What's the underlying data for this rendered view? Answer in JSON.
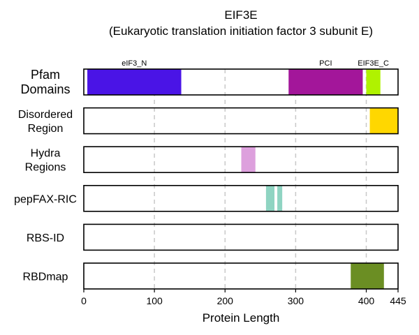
{
  "title": "EIF3E",
  "subtitle": "(Eukaryotic translation initiation factor 3 subunit E)",
  "chart_data": {
    "type": "bar",
    "orientation": "horizontal-tracks",
    "xlabel": "Protein Length",
    "xlim": [
      0,
      445
    ],
    "xticks": [
      0,
      100,
      200,
      300,
      400,
      445
    ],
    "grid_x": [
      100,
      200,
      300,
      400
    ],
    "tracks": [
      {
        "label_lines": [
          "Pfam",
          "Domains"
        ],
        "large": true,
        "segments": [
          {
            "label": "eIF3_N",
            "start": 5,
            "end": 138,
            "color": "#4a14e6"
          },
          {
            "label": "PCI",
            "start": 290,
            "end": 395,
            "color": "#a3169a"
          },
          {
            "label": "EIF3E_C",
            "start": 400,
            "end": 420,
            "color": "#b0f200"
          }
        ]
      },
      {
        "label_lines": [
          "Disordered",
          "Region"
        ],
        "large": false,
        "segments": [
          {
            "label": "",
            "start": 405,
            "end": 445,
            "color": "#ffd700"
          }
        ]
      },
      {
        "label_lines": [
          "Hydra",
          "Regions"
        ],
        "large": false,
        "segments": [
          {
            "label": "",
            "start": 223,
            "end": 243,
            "color": "#dda0dd"
          }
        ]
      },
      {
        "label_lines": [
          "pepFAX-RIC"
        ],
        "large": false,
        "segments": [
          {
            "label": "",
            "start": 258,
            "end": 270,
            "color": "#8fd4c2"
          },
          {
            "label": "",
            "start": 274,
            "end": 281,
            "color": "#8fd4c2"
          }
        ]
      },
      {
        "label_lines": [
          "RBS-ID"
        ],
        "large": false,
        "segments": []
      },
      {
        "label_lines": [
          "RBDmap"
        ],
        "large": false,
        "segments": [
          {
            "label": "",
            "start": 378,
            "end": 425,
            "color": "#6b8e23"
          }
        ]
      }
    ]
  }
}
